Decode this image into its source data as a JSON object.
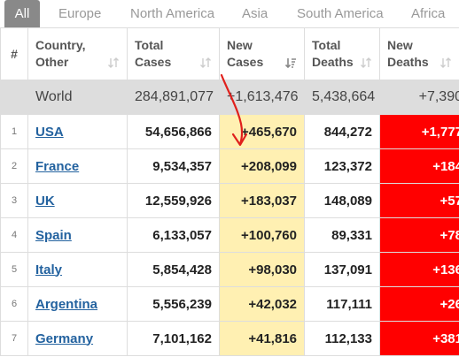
{
  "tabs": [
    "All",
    "Europe",
    "North America",
    "Asia",
    "South America",
    "Africa"
  ],
  "header": {
    "hash": "#",
    "country_line1": "Country,",
    "country_line2": "Other",
    "total_cases_line1": "Total",
    "total_cases_line2": "Cases",
    "new_cases_line1": "New",
    "new_cases_line2": "Cases",
    "total_deaths_line1": "Total",
    "total_deaths_line2": "Deaths",
    "new_deaths_line1": "New",
    "new_deaths_line2": "Deaths"
  },
  "world": {
    "country": "World",
    "total_cases": "284,891,077",
    "new_cases": "+1,613,476",
    "total_deaths": "5,438,664",
    "new_deaths": "+7,390"
  },
  "rows": [
    {
      "idx": "1",
      "country": "USA",
      "total_cases": "54,656,866",
      "new_cases": "+465,670",
      "total_deaths": "844,272",
      "new_deaths": "+1,777"
    },
    {
      "idx": "2",
      "country": "France",
      "total_cases": "9,534,357",
      "new_cases": "+208,099",
      "total_deaths": "123,372",
      "new_deaths": "+184"
    },
    {
      "idx": "3",
      "country": "UK",
      "total_cases": "12,559,926",
      "new_cases": "+183,037",
      "total_deaths": "148,089",
      "new_deaths": "+57"
    },
    {
      "idx": "4",
      "country": "Spain",
      "total_cases": "6,133,057",
      "new_cases": "+100,760",
      "total_deaths": "89,331",
      "new_deaths": "+78"
    },
    {
      "idx": "5",
      "country": "Italy",
      "total_cases": "5,854,428",
      "new_cases": "+98,030",
      "total_deaths": "137,091",
      "new_deaths": "+136"
    },
    {
      "idx": "6",
      "country": "Argentina",
      "total_cases": "5,556,239",
      "new_cases": "+42,032",
      "total_deaths": "117,111",
      "new_deaths": "+26"
    },
    {
      "idx": "7",
      "country": "Germany",
      "total_cases": "7,101,162",
      "new_cases": "+41,816",
      "total_deaths": "112,133",
      "new_deaths": "+381"
    }
  ],
  "colors": {
    "tab_active_bg": "#898989",
    "new_cases_bg": "#fff0b2",
    "new_deaths_bg": "#ff0000",
    "world_bg": "#dddddd",
    "link": "#23629f",
    "annotation_arrow": "#e0201c"
  },
  "icons": {
    "sort": "sort-arrows-icon",
    "sort_active": "sort-descending-icon",
    "annotation": "red-arrow-annotation"
  }
}
